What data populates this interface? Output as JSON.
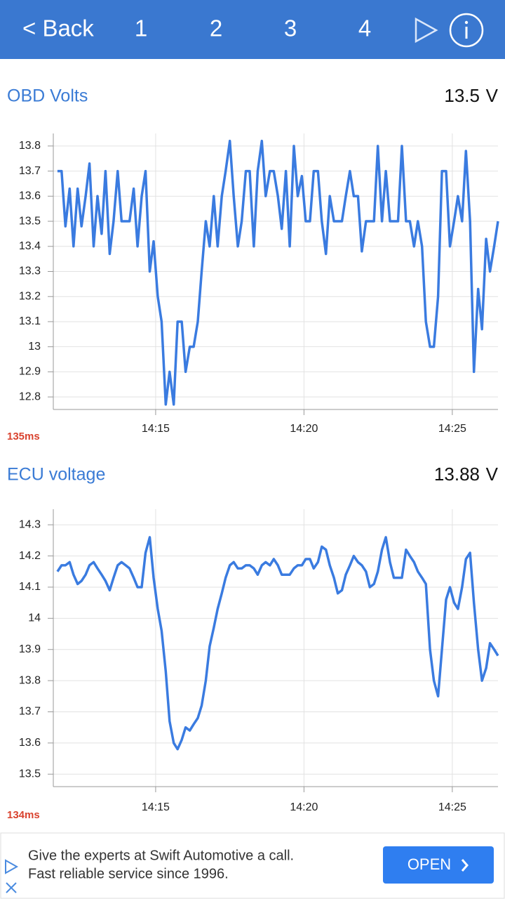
{
  "nav": {
    "back": "< Back",
    "tabs": [
      "1",
      "2",
      "3",
      "4"
    ]
  },
  "chart_data": [
    {
      "type": "line",
      "title": "OBD Volts",
      "reading": "13.5",
      "unit": "V",
      "latency": "135ms",
      "color": "#3a7be0",
      "grid": true,
      "x": [
        851.69,
        851.83,
        851.96,
        852.1,
        852.23,
        852.37,
        852.5,
        852.64,
        852.77,
        852.91,
        853.04,
        853.18,
        853.31,
        853.45,
        853.58,
        853.72,
        853.85,
        853.99,
        854.12,
        854.26,
        854.39,
        854.53,
        854.66,
        854.8,
        854.93,
        855.07,
        855.2,
        855.34,
        855.47,
        855.61,
        855.74,
        855.88,
        856.01,
        856.15,
        856.28,
        856.42,
        856.55,
        856.69,
        856.82,
        856.96,
        857.09,
        857.23,
        857.36,
        857.5,
        857.63,
        857.77,
        857.9,
        858.04,
        858.17,
        858.31,
        858.44,
        858.58,
        858.71,
        858.85,
        858.98,
        859.12,
        859.25,
        859.39,
        859.52,
        859.66,
        859.79,
        859.93,
        860.06,
        860.2,
        860.33,
        860.47,
        860.6,
        860.74,
        860.87,
        861.01,
        861.14,
        861.28,
        861.41,
        861.55,
        861.68,
        861.82,
        861.95,
        862.09,
        862.22,
        862.36,
        862.49,
        862.63,
        862.76,
        862.9,
        863.03,
        863.17,
        863.3,
        863.44,
        863.57,
        863.71,
        863.84,
        863.98,
        864.11,
        864.25,
        864.38,
        864.52,
        864.65,
        864.79,
        864.92,
        865.06,
        865.19,
        865.33,
        865.46,
        865.6,
        865.73,
        865.87,
        866.0,
        866.14,
        866.27,
        866.41,
        866.54
      ],
      "values": [
        13.7,
        13.7,
        13.48,
        13.63,
        13.4,
        13.63,
        13.48,
        13.6,
        13.73,
        13.4,
        13.6,
        13.45,
        13.7,
        13.37,
        13.5,
        13.7,
        13.5,
        13.5,
        13.5,
        13.63,
        13.4,
        13.6,
        13.7,
        13.3,
        13.42,
        13.2,
        13.1,
        12.77,
        12.9,
        12.77,
        13.1,
        13.1,
        12.9,
        13.0,
        13.0,
        13.1,
        13.3,
        13.5,
        13.4,
        13.6,
        13.4,
        13.6,
        13.7,
        13.82,
        13.6,
        13.4,
        13.5,
        13.7,
        13.7,
        13.4,
        13.7,
        13.82,
        13.6,
        13.7,
        13.7,
        13.6,
        13.47,
        13.7,
        13.4,
        13.8,
        13.6,
        13.68,
        13.5,
        13.5,
        13.7,
        13.7,
        13.5,
        13.37,
        13.6,
        13.5,
        13.5,
        13.5,
        13.6,
        13.7,
        13.6,
        13.6,
        13.38,
        13.5,
        13.5,
        13.5,
        13.8,
        13.5,
        13.7,
        13.5,
        13.5,
        13.5,
        13.8,
        13.5,
        13.5,
        13.4,
        13.5,
        13.4,
        13.1,
        13.0,
        13.0,
        13.2,
        13.7,
        13.7,
        13.4,
        13.5,
        13.6,
        13.5,
        13.78,
        13.5,
        12.9,
        13.23,
        13.07,
        13.43,
        13.3,
        13.4,
        13.5
      ],
      "xlim": [
        851.55,
        866.54
      ],
      "xticks": [
        {
          "value": 855,
          "label": "14:15"
        },
        {
          "value": 860,
          "label": "14:20"
        },
        {
          "value": 865,
          "label": "14:25"
        }
      ],
      "ylim": [
        12.75,
        13.85
      ],
      "yticks": [
        12.8,
        12.9,
        13,
        13.1,
        13.2,
        13.3,
        13.4,
        13.5,
        13.6,
        13.7,
        13.8
      ]
    },
    {
      "type": "line",
      "title": "ECU voltage",
      "reading": "13.88",
      "unit": "V",
      "latency": "134ms",
      "color": "#3a7be0",
      "grid": true,
      "x": [
        851.69,
        851.83,
        851.96,
        852.1,
        852.23,
        852.37,
        852.5,
        852.64,
        852.77,
        852.91,
        853.04,
        853.18,
        853.31,
        853.45,
        853.58,
        853.72,
        853.85,
        853.99,
        854.12,
        854.26,
        854.39,
        854.53,
        854.66,
        854.8,
        854.93,
        855.07,
        855.2,
        855.34,
        855.47,
        855.61,
        855.74,
        855.88,
        856.01,
        856.15,
        856.28,
        856.42,
        856.55,
        856.69,
        856.82,
        856.96,
        857.09,
        857.23,
        857.36,
        857.5,
        857.63,
        857.77,
        857.9,
        858.04,
        858.17,
        858.31,
        858.44,
        858.58,
        858.71,
        858.85,
        858.98,
        859.12,
        859.25,
        859.39,
        859.52,
        859.66,
        859.79,
        859.93,
        860.06,
        860.2,
        860.33,
        860.47,
        860.6,
        860.74,
        860.87,
        861.01,
        861.14,
        861.28,
        861.41,
        861.55,
        861.68,
        861.82,
        861.95,
        862.09,
        862.22,
        862.36,
        862.49,
        862.63,
        862.76,
        862.9,
        863.03,
        863.17,
        863.3,
        863.44,
        863.57,
        863.71,
        863.84,
        863.98,
        864.11,
        864.25,
        864.38,
        864.52,
        864.65,
        864.79,
        864.92,
        865.06,
        865.19,
        865.33,
        865.46,
        865.6,
        865.73,
        865.87,
        866.0,
        866.14,
        866.27,
        866.41,
        866.54
      ],
      "values": [
        14.15,
        14.17,
        14.17,
        14.18,
        14.14,
        14.11,
        14.12,
        14.14,
        14.17,
        14.18,
        14.16,
        14.14,
        14.12,
        14.09,
        14.13,
        14.17,
        14.18,
        14.17,
        14.16,
        14.13,
        14.1,
        14.1,
        14.21,
        14.26,
        14.13,
        14.03,
        13.96,
        13.83,
        13.67,
        13.6,
        13.58,
        13.61,
        13.65,
        13.64,
        13.66,
        13.68,
        13.72,
        13.8,
        13.91,
        13.97,
        14.03,
        14.08,
        14.13,
        14.17,
        14.18,
        14.16,
        14.16,
        14.17,
        14.17,
        14.16,
        14.14,
        14.17,
        14.18,
        14.17,
        14.19,
        14.17,
        14.14,
        14.14,
        14.14,
        14.16,
        14.17,
        14.17,
        14.19,
        14.19,
        14.16,
        14.18,
        14.23,
        14.22,
        14.17,
        14.13,
        14.08,
        14.09,
        14.14,
        14.17,
        14.2,
        14.18,
        14.17,
        14.15,
        14.1,
        14.11,
        14.15,
        14.22,
        14.26,
        14.18,
        14.13,
        14.13,
        14.13,
        14.22,
        14.2,
        14.18,
        14.15,
        14.13,
        14.11,
        13.9,
        13.8,
        13.75,
        13.9,
        14.06,
        14.1,
        14.05,
        14.03,
        14.1,
        14.19,
        14.21,
        14.05,
        13.9,
        13.8,
        13.84,
        13.92,
        13.9,
        13.88
      ],
      "xlim": [
        851.55,
        866.54
      ],
      "xticks": [
        {
          "value": 855,
          "label": "14:15"
        },
        {
          "value": 860,
          "label": "14:20"
        },
        {
          "value": 865,
          "label": "14:25"
        }
      ],
      "ylim": [
        13.46,
        14.35
      ],
      "yticks": [
        13.5,
        13.6,
        13.7,
        13.8,
        13.9,
        14,
        14.1,
        14.2,
        14.3
      ]
    }
  ],
  "ad": {
    "lines": [
      "Give the experts at Swift Automotive a call.",
      "Fast reliable service since 1996."
    ],
    "button": "OPEN"
  }
}
